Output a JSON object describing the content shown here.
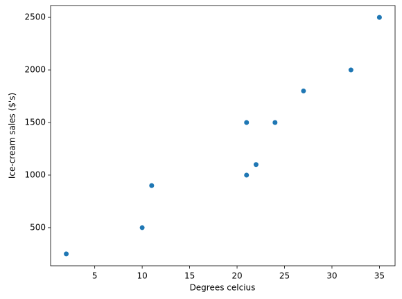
{
  "chart_data": {
    "type": "scatter",
    "x_label": "Degrees celcius",
    "y_label": "Ice-cream sales ($'s)",
    "x": [
      2,
      10,
      11,
      21,
      21,
      22,
      24,
      27,
      32,
      35
    ],
    "values": [
      250,
      500,
      900,
      1000,
      1500,
      1100,
      1500,
      1800,
      2000,
      2500
    ],
    "color": "#1f77b4",
    "xlim": [
      0.35,
      36.65
    ],
    "xticks": [
      5,
      10,
      15,
      20,
      25,
      30,
      35
    ],
    "ylim": [
      137.5,
      2612.5
    ],
    "yticks": [
      500,
      1000,
      1500,
      2000,
      2500
    ],
    "grid": false
  }
}
